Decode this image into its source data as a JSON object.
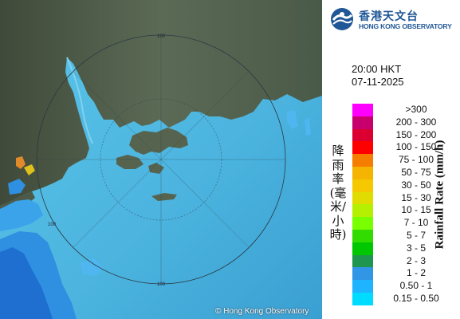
{
  "header": {
    "org_name_cn": "香港天文台",
    "org_name_en": "HONG KONG OBSERVATORY"
  },
  "timestamp": {
    "time": "20:00 HKT",
    "date": "07-11-2025"
  },
  "map": {
    "range_rings": [
      {
        "label": "100"
      },
      {
        "label": "100"
      },
      {
        "label": "100"
      }
    ],
    "copyright": "© Hong Kong Observatory"
  },
  "legend": {
    "title_cn": "降雨率(毫米/小時)",
    "title_en": "Rainfall Rate (mm/h)",
    "items": [
      {
        "label": ">300",
        "color": "#ff00ff"
      },
      {
        "label": "200 - 300",
        "color": "#c8006e"
      },
      {
        "label": "150 - 200",
        "color": "#dc0032"
      },
      {
        "label": "100 - 150",
        "color": "#ff0000"
      },
      {
        "label": "75 - 100",
        "color": "#f57d00"
      },
      {
        "label": "50 - 75",
        "color": "#f5b400"
      },
      {
        "label": "30 - 50",
        "color": "#f5c800"
      },
      {
        "label": "15 - 30",
        "color": "#e1dc00"
      },
      {
        "label": "10 - 15",
        "color": "#b4f000"
      },
      {
        "label": "7 - 10",
        "color": "#78ff00"
      },
      {
        "label": "5 - 7",
        "color": "#32dc00"
      },
      {
        "label": "3 - 5",
        "color": "#00c800"
      },
      {
        "label": "2 - 3",
        "color": "#1e9650"
      },
      {
        "label": "1 - 2",
        "color": "#3296e6"
      },
      {
        "label": "0.50 - 1",
        "color": "#1eb4ff"
      },
      {
        "label": "0.15 - 0.50",
        "color": "#00dcff"
      }
    ]
  }
}
